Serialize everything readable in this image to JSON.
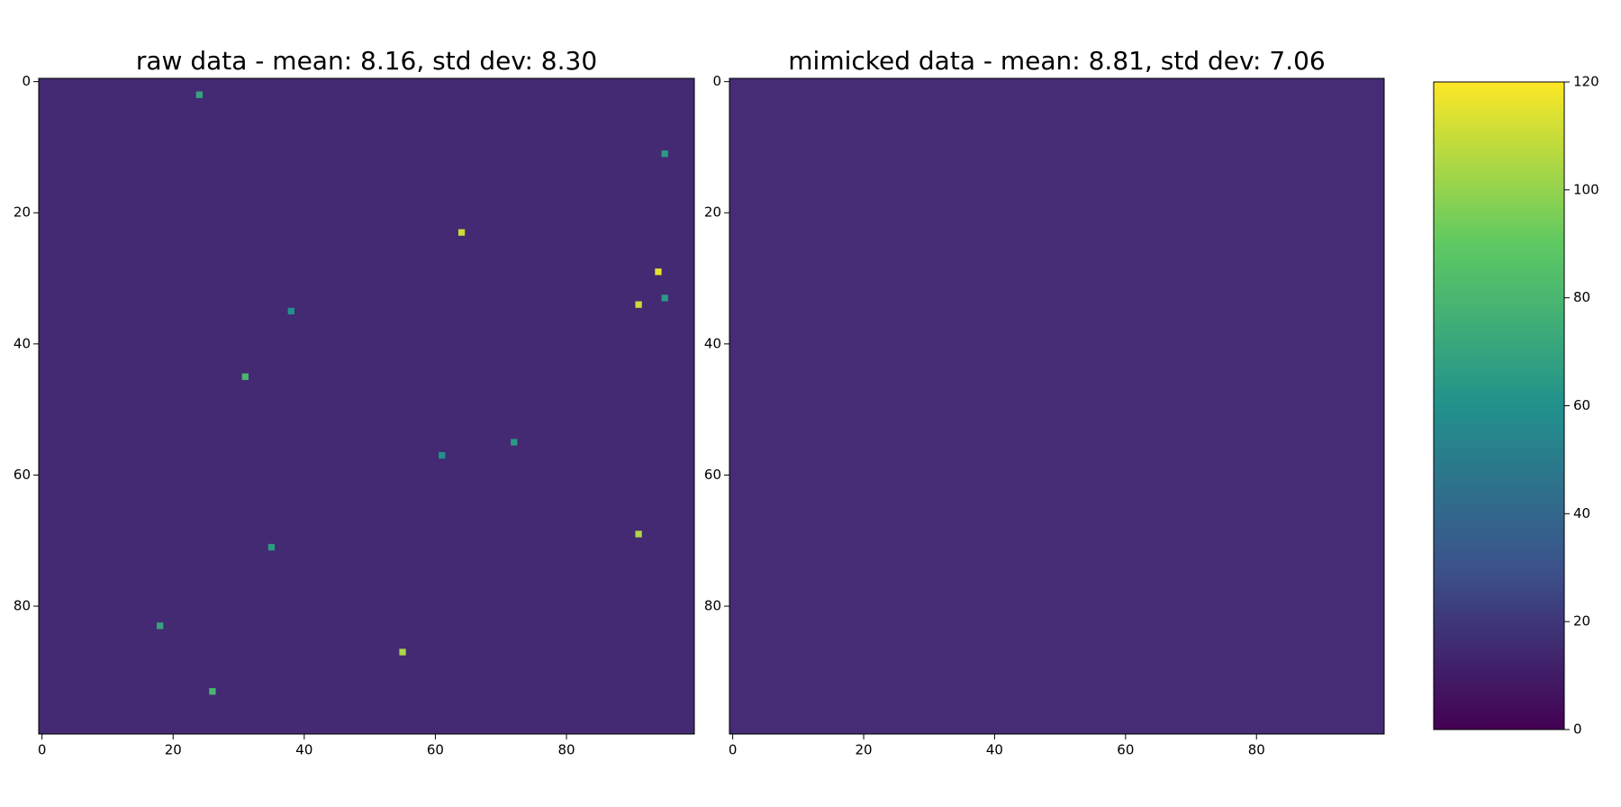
{
  "chart_data": [
    {
      "type": "heatmap",
      "title": "raw data - mean: 8.16, std dev: 8.30",
      "xlim": [
        -0.5,
        99.5
      ],
      "ylim": [
        99.5,
        -0.5
      ],
      "xticks": [
        0,
        20,
        40,
        60,
        80
      ],
      "yticks": [
        0,
        20,
        40,
        60,
        80
      ],
      "clim": [
        0,
        120
      ],
      "background_color": "#432a72",
      "points": [
        {
          "x": 24,
          "y": 2,
          "value": 70
        },
        {
          "x": 64,
          "y": 23,
          "value": 110
        },
        {
          "x": 94,
          "y": 29,
          "value": 115
        },
        {
          "x": 91,
          "y": 34,
          "value": 110
        },
        {
          "x": 91,
          "y": 69,
          "value": 105
        },
        {
          "x": 55,
          "y": 87,
          "value": 105
        },
        {
          "x": 31,
          "y": 45,
          "value": 80
        },
        {
          "x": 72,
          "y": 55,
          "value": 65
        },
        {
          "x": 26,
          "y": 93,
          "value": 80
        },
        {
          "x": 35,
          "y": 71,
          "value": 65
        },
        {
          "x": 18,
          "y": 83,
          "value": 70
        },
        {
          "x": 95,
          "y": 11,
          "value": 65
        },
        {
          "x": 95,
          "y": 33,
          "value": 65
        },
        {
          "x": 38,
          "y": 35,
          "value": 60
        },
        {
          "x": 61,
          "y": 57,
          "value": 60
        }
      ]
    },
    {
      "type": "heatmap",
      "title": "mimicked data - mean: 8.81, std dev: 7.06",
      "xlim": [
        -0.5,
        99.5
      ],
      "ylim": [
        99.5,
        -0.5
      ],
      "xticks": [
        0,
        20,
        40,
        60,
        80
      ],
      "yticks": [
        0,
        20,
        40,
        60,
        80
      ],
      "clim": [
        0,
        120
      ],
      "background_color": "#452c75",
      "points": []
    }
  ],
  "colorbar": {
    "clim": [
      0,
      120
    ],
    "ticks": [
      0,
      20,
      40,
      60,
      80,
      100,
      120
    ]
  }
}
